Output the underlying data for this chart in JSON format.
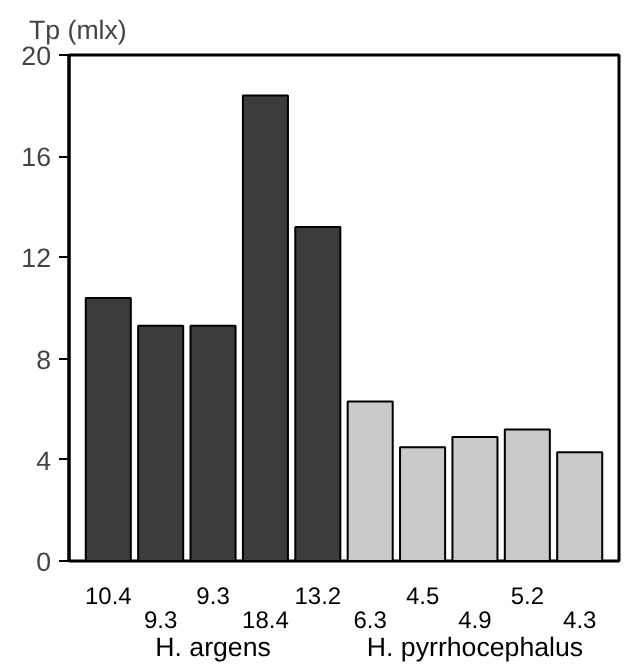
{
  "chart_data": {
    "type": "bar",
    "ylabel": "Tp (mlx)",
    "categories": [
      null,
      null,
      null,
      null,
      null,
      null,
      null,
      null,
      null,
      null
    ],
    "values": [
      10.4,
      9.3,
      9.3,
      18.4,
      13.2,
      6.3,
      4.5,
      4.9,
      5.2,
      4.3
    ],
    "colors": [
      "#3c3c3c",
      "#3c3c3c",
      "#3c3c3c",
      "#3c3c3c",
      "#3c3c3c",
      "#cacaca",
      "#cacaca",
      "#cacaca",
      "#cacaca",
      "#cacaca"
    ],
    "data_labels": true,
    "annotations": [
      "H. argens",
      "H. pyrrhocephalus"
    ],
    "ylim": [
      0,
      20
    ],
    "yticks": [
      0,
      4,
      8,
      12,
      16,
      20
    ],
    "grid": false
  }
}
